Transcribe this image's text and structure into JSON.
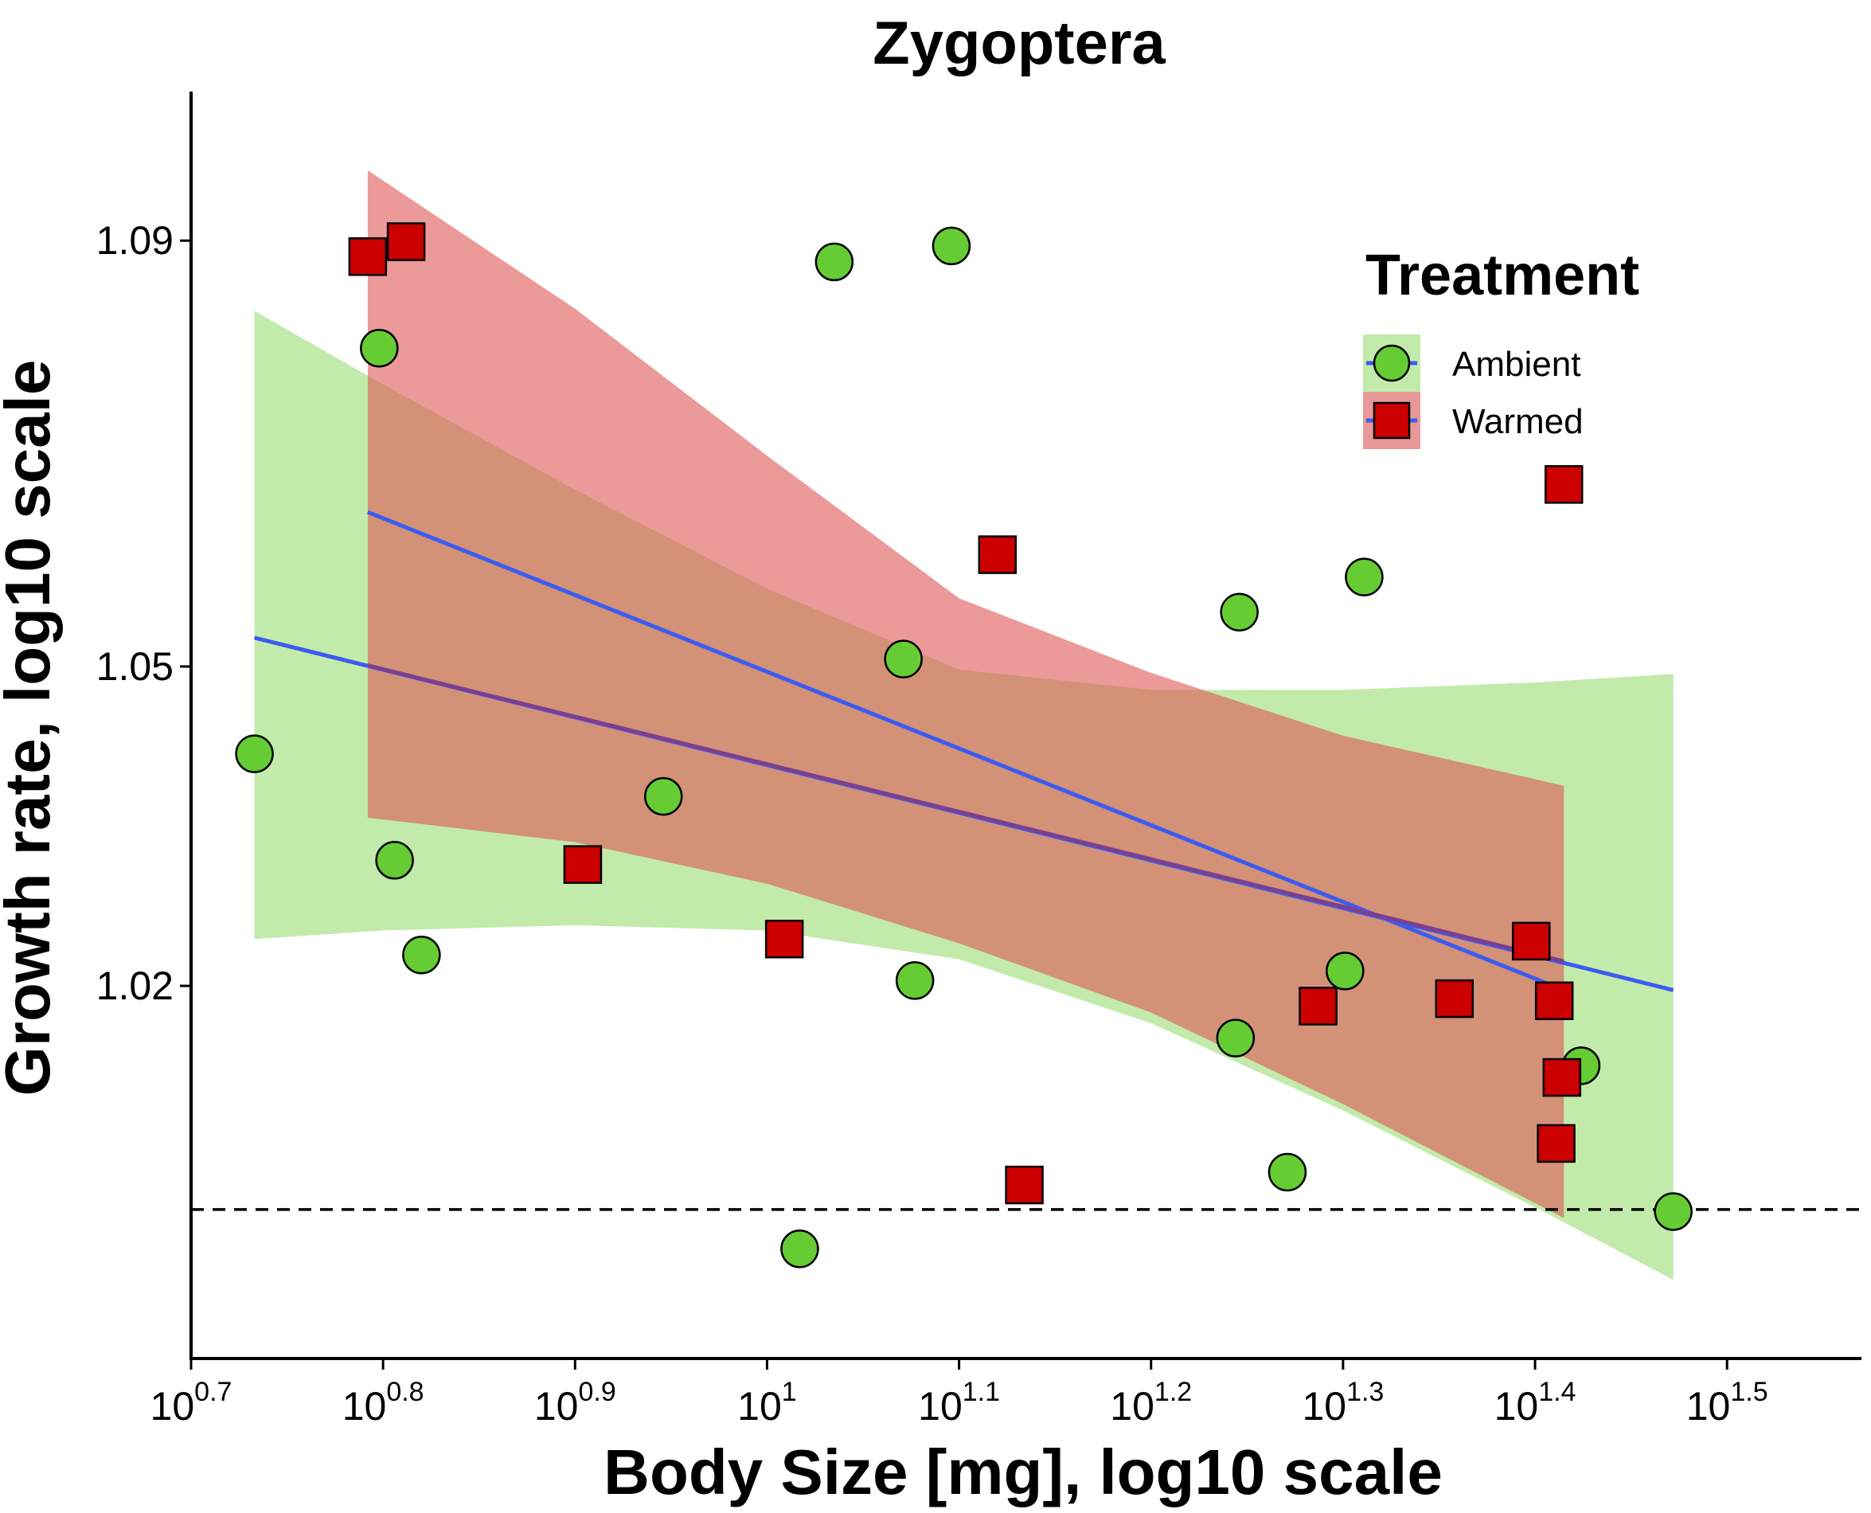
{
  "chart_data": {
    "type": "scatter",
    "title": "Zygoptera",
    "xlabel": "Body Size [mg], log10 scale",
    "ylabel": "Growth rate, log10 scale",
    "x_scale": "log10",
    "xlim": [
      0.7,
      1.57
    ],
    "ylim": [
      0.985,
      1.104
    ],
    "x_ticks": [
      {
        "base": "10",
        "exp": "0.7",
        "value": 0.7
      },
      {
        "base": "10",
        "exp": "0.8",
        "value": 0.8
      },
      {
        "base": "10",
        "exp": "0.9",
        "value": 0.9
      },
      {
        "base": "10",
        "exp": "1",
        "value": 1.0
      },
      {
        "base": "10",
        "exp": "1.1",
        "value": 1.1
      },
      {
        "base": "10",
        "exp": "1.2",
        "value": 1.2
      },
      {
        "base": "10",
        "exp": "1.3",
        "value": 1.3
      },
      {
        "base": "10",
        "exp": "1.4",
        "value": 1.4
      },
      {
        "base": "10",
        "exp": "1.5",
        "value": 1.5
      }
    ],
    "y_ticks": [
      {
        "label": "1.02",
        "value": 1.02
      },
      {
        "label": "1.05",
        "value": 1.05
      },
      {
        "label": "1.09",
        "value": 1.09
      }
    ],
    "reference_line": {
      "y": 0.999,
      "style": "dashed"
    },
    "legend": {
      "title": "Treatment",
      "position": "top-right",
      "entries": [
        {
          "label": "Ambient",
          "shape": "circle",
          "color": "#66cc33",
          "band_color": "#c2ebab"
        },
        {
          "label": "Warmed",
          "shape": "square",
          "color": "#cc0000",
          "band_color": "#e89898"
        }
      ]
    },
    "series": [
      {
        "name": "Ambient",
        "shape": "circle",
        "color": "#66cc33",
        "points": [
          {
            "x": 0.733,
            "y": 1.0418
          },
          {
            "x": 0.798,
            "y": 1.0799
          },
          {
            "x": 0.806,
            "y": 1.0318
          },
          {
            "x": 0.82,
            "y": 1.0229
          },
          {
            "x": 0.946,
            "y": 1.0378
          },
          {
            "x": 1.017,
            "y": 0.9953
          },
          {
            "x": 1.035,
            "y": 1.088
          },
          {
            "x": 1.071,
            "y": 1.0507
          },
          {
            "x": 1.077,
            "y": 1.0205
          },
          {
            "x": 1.096,
            "y": 1.0895
          },
          {
            "x": 1.246,
            "y": 1.0551
          },
          {
            "x": 1.244,
            "y": 1.0151
          },
          {
            "x": 1.271,
            "y": 1.0025
          },
          {
            "x": 1.301,
            "y": 1.0214
          },
          {
            "x": 1.311,
            "y": 1.0584
          },
          {
            "x": 1.424,
            "y": 1.0125
          },
          {
            "x": 1.472,
            "y": 0.9988
          }
        ],
        "fit": {
          "x": [
            0.733,
            1.472
          ],
          "y": [
            1.0527,
            1.0196
          ]
        },
        "ci": {
          "x": [
            0.733,
            0.8,
            0.9,
            1.0,
            1.1,
            1.2,
            1.3,
            1.4,
            1.472
          ],
          "lower": [
            1.0244,
            1.0252,
            1.0257,
            1.0252,
            1.0225,
            1.0165,
            1.0083,
            0.9992,
            0.9924
          ],
          "upper": [
            1.0834,
            1.0765,
            1.0666,
            1.0573,
            1.0497,
            1.0478,
            1.0478,
            1.0485,
            1.0493
          ]
        }
      },
      {
        "name": "Warmed",
        "shape": "square",
        "color": "#cc0000",
        "points": [
          {
            "x": 0.792,
            "y": 1.0885
          },
          {
            "x": 0.812,
            "y": 1.0899
          },
          {
            "x": 0.904,
            "y": 1.0314
          },
          {
            "x": 1.009,
            "y": 1.0244
          },
          {
            "x": 1.12,
            "y": 1.0605
          },
          {
            "x": 1.134,
            "y": 1.0013
          },
          {
            "x": 1.287,
            "y": 1.0181
          },
          {
            "x": 1.358,
            "y": 1.0188
          },
          {
            "x": 1.398,
            "y": 1.0242
          },
          {
            "x": 1.41,
            "y": 1.0186
          },
          {
            "x": 1.414,
            "y": 1.0114
          },
          {
            "x": 1.411,
            "y": 1.0052
          },
          {
            "x": 1.415,
            "y": 1.0671
          }
        ],
        "fit": {
          "x": [
            0.792,
            1.415
          ],
          "y": [
            1.0645,
            1.0196
          ]
        },
        "ci": {
          "x": [
            0.792,
            0.9,
            1.0,
            1.1,
            1.2,
            1.3,
            1.415
          ],
          "lower": [
            1.0358,
            1.0335,
            1.0296,
            1.024,
            1.0175,
            1.0089,
            0.9982
          ],
          "upper": [
            1.0966,
            1.0836,
            1.0698,
            1.0564,
            1.0494,
            1.0435,
            1.0388
          ]
        }
      }
    ],
    "pooled_fit": {
      "x": [
        0.792,
        1.415
      ],
      "y": [
        1.0501,
        1.0223
      ],
      "color": "#7b3f8f"
    }
  }
}
